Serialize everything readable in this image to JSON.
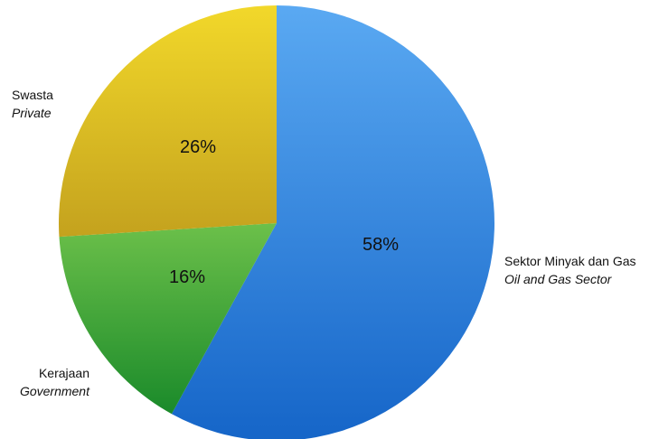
{
  "chart_data": {
    "type": "pie",
    "slices": [
      {
        "label": "Sektor Minyak dan Gas",
        "label_en": "Oil and Gas Sector",
        "value": 58,
        "value_label": "58%",
        "color_light": "#5aa9f2",
        "color_dark": "#1565c8"
      },
      {
        "label": "Kerajaan",
        "label_en": "Government",
        "value": 16,
        "value_label": "16%",
        "color_light": "#6cc04a",
        "color_dark": "#1a8a2a"
      },
      {
        "label": "Swasta",
        "label_en": "Private",
        "value": 26,
        "value_label": "26%",
        "color_light": "#f2d82a",
        "color_dark": "#c4a21e"
      }
    ],
    "start_angle_deg": 0,
    "direction": "clockwise"
  }
}
